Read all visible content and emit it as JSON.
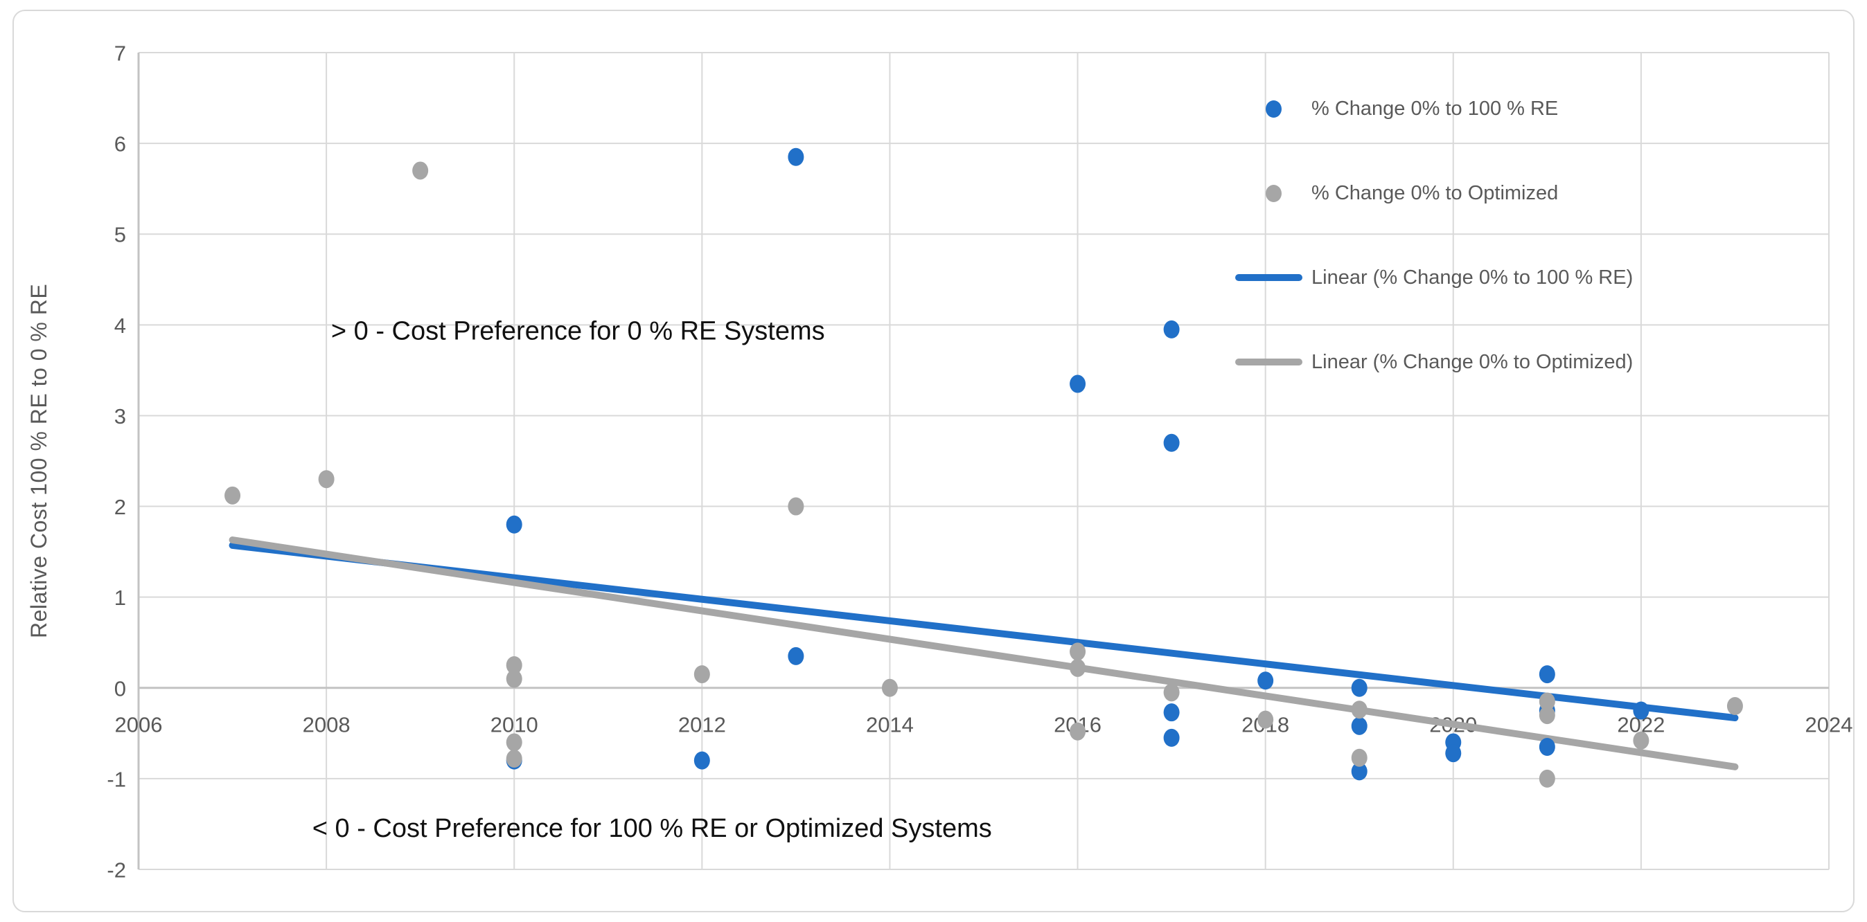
{
  "colors": {
    "blue": "#2170C8",
    "gray": "#A6A6A6",
    "tick_text": "#595959",
    "axis_title_text": "#595959",
    "legend_text": "#595959",
    "annotation_text": "#111111",
    "gridline": "#D9D9D9",
    "axis_line": "#C3C3C3",
    "border": "#D9D9D9",
    "background": "#FFFFFF"
  },
  "chart_data": {
    "type": "scatter",
    "title": "",
    "xlabel": "",
    "ylabel": "Relative Cost 100 % RE to 0 % RE",
    "xlim": [
      2006,
      2024
    ],
    "ylim": [
      -2,
      7
    ],
    "x_ticks": [
      "2006",
      "2008",
      "2010",
      "2012",
      "2014",
      "2016",
      "2018",
      "2020",
      "2022",
      "2024"
    ],
    "x_tick_values": [
      2006,
      2008,
      2010,
      2012,
      2014,
      2016,
      2018,
      2020,
      2022,
      2024
    ],
    "y_ticks": [
      "-2",
      "-1",
      "0",
      "1",
      "2",
      "3",
      "4",
      "5",
      "6",
      "7"
    ],
    "y_tick_values": [
      -2,
      -1,
      0,
      1,
      2,
      3,
      4,
      5,
      6,
      7
    ],
    "grid": true,
    "legend_position": "top-right",
    "series": [
      {
        "name": "% Change 0% to 100 % RE",
        "type": "scatter",
        "color_key": "blue",
        "points": [
          [
            2010,
            1.8
          ],
          [
            2010,
            -0.8
          ],
          [
            2012,
            -0.8
          ],
          [
            2013,
            5.85
          ],
          [
            2013,
            0.35
          ],
          [
            2016,
            3.35
          ],
          [
            2017,
            3.95
          ],
          [
            2017,
            2.7
          ],
          [
            2017,
            -0.27
          ],
          [
            2017,
            -0.55
          ],
          [
            2018,
            0.08
          ],
          [
            2019,
            0.0
          ],
          [
            2019,
            -0.42
          ],
          [
            2019,
            -0.92
          ],
          [
            2020,
            -0.6
          ],
          [
            2020,
            -0.72
          ],
          [
            2021,
            0.15
          ],
          [
            2021,
            -0.25
          ],
          [
            2021,
            -0.65
          ],
          [
            2022,
            -0.25
          ]
        ]
      },
      {
        "name": "% Change 0% to Optimized",
        "type": "scatter",
        "color_key": "gray",
        "points": [
          [
            2007,
            2.12
          ],
          [
            2008,
            2.3
          ],
          [
            2009,
            5.7
          ],
          [
            2010,
            0.25
          ],
          [
            2010,
            0.1
          ],
          [
            2010,
            -0.6
          ],
          [
            2010,
            -0.78
          ],
          [
            2012,
            0.15
          ],
          [
            2013,
            2.0
          ],
          [
            2014,
            0.0
          ],
          [
            2016,
            0.4
          ],
          [
            2016,
            0.22
          ],
          [
            2016,
            -0.48
          ],
          [
            2017,
            -0.05
          ],
          [
            2018,
            -0.35
          ],
          [
            2019,
            -0.24
          ],
          [
            2019,
            -0.77
          ],
          [
            2021,
            -0.15
          ],
          [
            2021,
            -0.3
          ],
          [
            2021,
            -1.0
          ],
          [
            2022,
            -0.58
          ],
          [
            2023,
            -0.2
          ]
        ]
      },
      {
        "name": "Linear (% Change 0% to 100 % RE)",
        "type": "line",
        "color_key": "blue",
        "points": [
          [
            2007,
            1.57
          ],
          [
            2023,
            -0.33
          ]
        ]
      },
      {
        "name": "Linear (% Change 0% to Optimized)",
        "type": "line",
        "color_key": "gray",
        "points": [
          [
            2007,
            1.63
          ],
          [
            2023,
            -0.87
          ]
        ]
      }
    ],
    "annotations": [
      {
        "text": "> 0 - Cost Preference for 0 % RE Systems",
        "x": 2008.05,
        "y": 3.93
      },
      {
        "text": "< 0 - Cost Preference for 100 % RE or Optimized Systems",
        "x": 2007.85,
        "y": -1.55
      }
    ]
  }
}
